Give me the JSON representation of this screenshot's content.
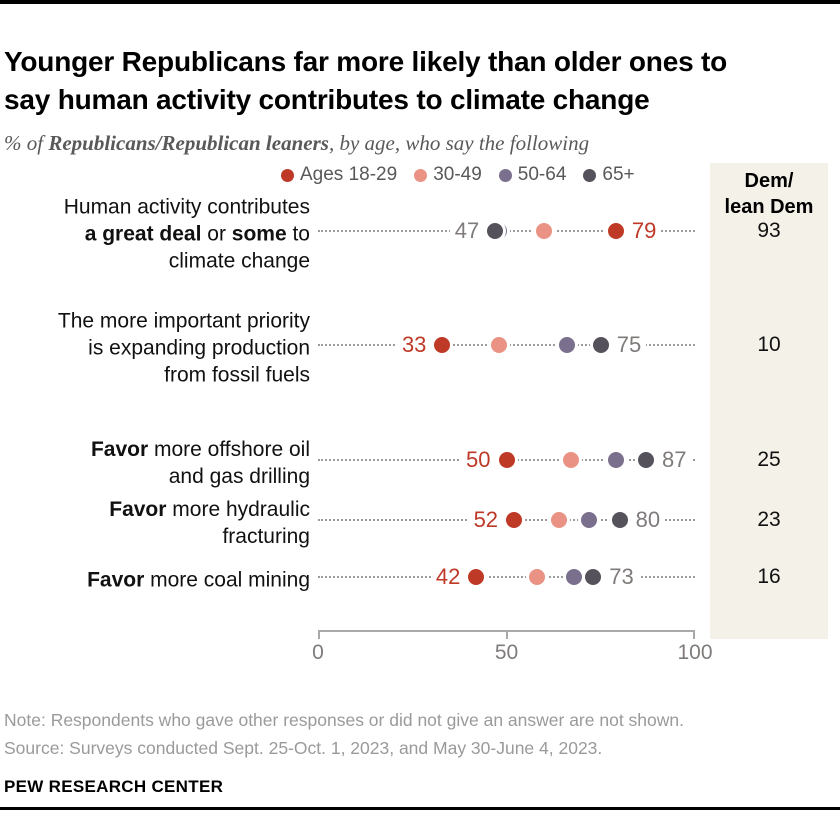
{
  "header": {
    "title_line1": "Younger Republicans far more likely than older ones to",
    "title_line2": "say human activity contributes to climate change",
    "subtitle_prefix": "% of ",
    "subtitle_bold": "Republicans/Republican leaners",
    "subtitle_suffix": ", by age, who say the following"
  },
  "side_panel": {
    "header_line1": "Dem/",
    "header_line2": "lean Dem",
    "bg_color": "#f4f1e9"
  },
  "colors": {
    "accent_red": "#bf3927",
    "value_gray": "#7f7b7a",
    "leader_gray": "#9c9c9c"
  },
  "footer": {
    "note": "Note: Respondents who gave other responses or did not give an answer are not shown.",
    "source": "Source: Surveys conducted Sept. 25-Oct. 1, 2023, and May 30-June 4, 2023.",
    "brand": "PEW RESEARCH CENTER"
  },
  "chart_data": {
    "type": "scatter",
    "subtype": "dot-plot",
    "title": "Younger Republicans far more likely than older ones to say human activity contributes to climate change",
    "x_axis": {
      "range": [
        0,
        100
      ],
      "ticks": [
        "0",
        "50",
        "100"
      ]
    },
    "categories": [
      "Human activity contributes a great deal or some to climate change",
      "The more important priority is expanding production from fossil fuels",
      "Favor more offshore oil and gas drilling",
      "Favor more hydraulic fracturing",
      "Favor more coal mining"
    ],
    "series": [
      {
        "name": "Ages 18-29",
        "color": "#bf3927",
        "values": [
          79,
          33,
          50,
          52,
          42
        ]
      },
      {
        "name": "30-49",
        "color": "#ea9384",
        "values": [
          60,
          48,
          67,
          64,
          58
        ]
      },
      {
        "name": "50-64",
        "color": "#7a708e",
        "values": [
          48,
          66,
          79,
          72,
          68
        ]
      },
      {
        "name": "65+",
        "color": "#56525b",
        "values": [
          47,
          75,
          87,
          80,
          73
        ]
      }
    ],
    "dem_lean_dem": [
      93,
      10,
      25,
      23,
      16
    ],
    "value_labels": [
      {
        "row": 0,
        "series": 3,
        "side": "left",
        "text": "47",
        "color": "gray"
      },
      {
        "row": 0,
        "series": 0,
        "side": "right",
        "text": "79",
        "color": "red"
      },
      {
        "row": 1,
        "series": 0,
        "side": "left",
        "text": "33",
        "color": "red"
      },
      {
        "row": 1,
        "series": 3,
        "side": "right",
        "text": "75",
        "color": "gray"
      },
      {
        "row": 2,
        "series": 0,
        "side": "left",
        "text": "50",
        "color": "red"
      },
      {
        "row": 2,
        "series": 3,
        "side": "right",
        "text": "87",
        "color": "gray"
      },
      {
        "row": 3,
        "series": 0,
        "side": "left",
        "text": "52",
        "color": "red"
      },
      {
        "row": 3,
        "series": 3,
        "side": "right",
        "text": "80",
        "color": "gray"
      },
      {
        "row": 4,
        "series": 0,
        "side": "left",
        "text": "42",
        "color": "red"
      },
      {
        "row": 4,
        "series": 3,
        "side": "right",
        "text": "73",
        "color": "gray"
      }
    ],
    "row_label_lines": [
      [
        [
          {
            "t": "Human activity contributes"
          }
        ],
        [
          {
            "t": "a great deal",
            "b": true
          },
          {
            "t": " or "
          },
          {
            "t": "some",
            "b": true
          },
          {
            "t": " to"
          }
        ],
        [
          {
            "t": "climate change"
          }
        ]
      ],
      [
        [
          {
            "t": "The more important priority"
          }
        ],
        [
          {
            "t": "is expanding production"
          }
        ],
        [
          {
            "t": "from fossil fuels"
          }
        ]
      ],
      [
        [
          {
            "t": "Favor",
            "b": true
          },
          {
            "t": " more offshore oil"
          }
        ],
        [
          {
            "t": "and gas drilling"
          }
        ]
      ],
      [
        [
          {
            "t": "Favor",
            "b": true
          },
          {
            "t": " more hydraulic"
          }
        ],
        [
          {
            "t": "fracturing"
          }
        ]
      ],
      [
        [
          {
            "t": "Favor",
            "b": true
          },
          {
            "t": " more coal mining"
          }
        ]
      ]
    ],
    "legend_position": "top",
    "grid": false
  }
}
